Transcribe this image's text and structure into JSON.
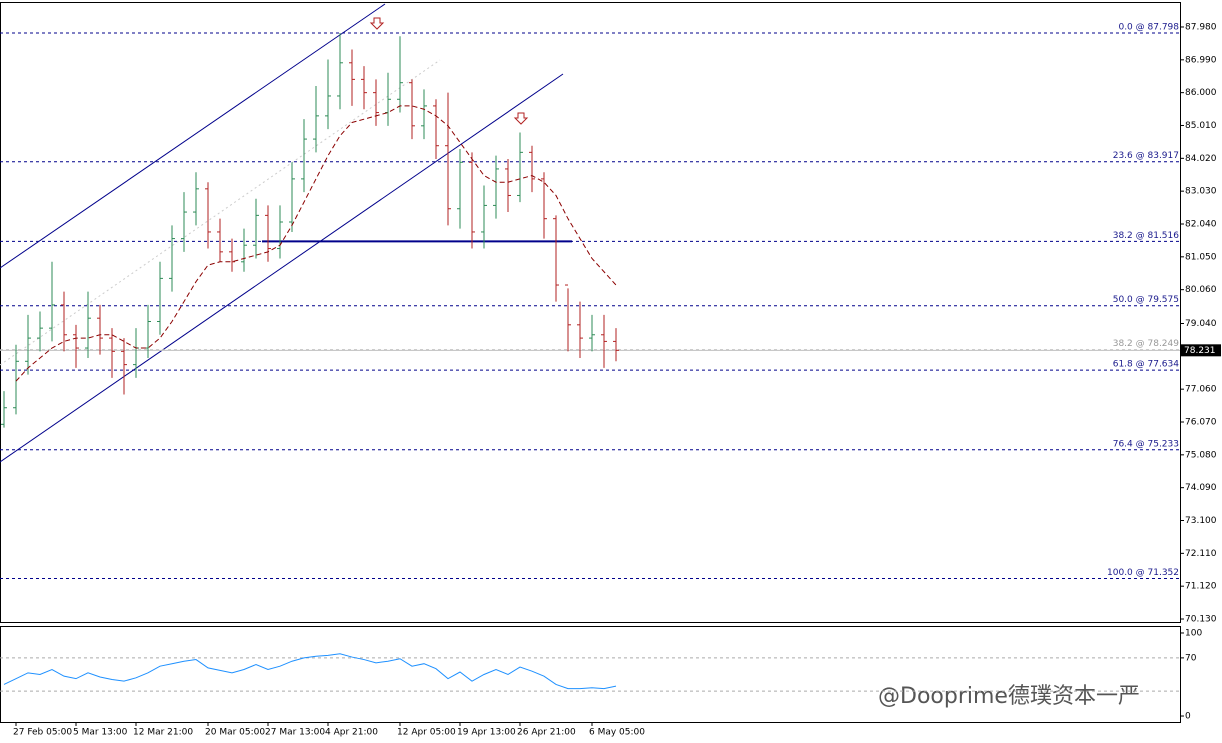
{
  "chart_data": {
    "type": "ohlc",
    "open": [
      76.0,
      76.5,
      77.9,
      78.6,
      78.9,
      79.6,
      78.7,
      78.3,
      79.2,
      78.6,
      78.2,
      77.8,
      78.3,
      79.1,
      80.4,
      81.6,
      82.4,
      83.1,
      81.8,
      81.2,
      80.9,
      81.4,
      82.3,
      81.3,
      82.1,
      83.4,
      84.6,
      85.3,
      85.9,
      86.9,
      86.4,
      86.0,
      85.4,
      85.8,
      86.3,
      85.0,
      85.6,
      84.4,
      82.5,
      83.9,
      81.8,
      82.6,
      83.7,
      82.9,
      84.2,
      83.4,
      82.2,
      80.2,
      79.0,
      78.6,
      78.7,
      78.5
    ],
    "high": [
      77.0,
      78.4,
      79.3,
      79.4,
      80.9,
      80.0,
      79.0,
      80.0,
      79.6,
      78.9,
      78.6,
      78.9,
      79.6,
      80.9,
      82.0,
      83.0,
      83.6,
      83.3,
      82.2,
      81.6,
      81.9,
      82.8,
      82.6,
      82.6,
      83.9,
      85.2,
      86.2,
      87.0,
      87.8,
      87.3,
      86.8,
      86.4,
      86.6,
      87.7,
      86.4,
      86.1,
      85.8,
      86.0,
      84.3,
      84.2,
      83.2,
      84.1,
      84.0,
      84.8,
      84.4,
      83.6,
      82.3,
      80.1,
      79.7,
      79.3,
      79.3,
      78.9
    ],
    "low": [
      75.9,
      76.3,
      77.5,
      78.2,
      78.5,
      78.2,
      77.7,
      78.0,
      78.1,
      77.4,
      76.9,
      77.4,
      78.0,
      78.7,
      80.0,
      81.2,
      82.0,
      81.3,
      80.9,
      80.6,
      80.6,
      81.0,
      80.9,
      81.0,
      81.8,
      83.0,
      84.2,
      84.9,
      85.5,
      85.6,
      85.5,
      85.0,
      85.0,
      85.4,
      84.6,
      84.6,
      84.0,
      82.0,
      81.9,
      81.3,
      81.3,
      82.2,
      82.4,
      82.7,
      83.0,
      81.6,
      79.7,
      78.2,
      78.0,
      78.2,
      77.7,
      77.9
    ],
    "close": [
      76.5,
      77.9,
      78.6,
      78.9,
      79.6,
      78.7,
      78.3,
      79.2,
      78.6,
      78.2,
      77.8,
      78.3,
      79.1,
      80.4,
      81.6,
      82.4,
      83.1,
      81.8,
      81.2,
      80.9,
      81.4,
      82.3,
      81.3,
      82.1,
      83.4,
      84.6,
      85.3,
      85.9,
      86.9,
      86.4,
      86.0,
      85.4,
      85.8,
      86.3,
      85.0,
      85.6,
      84.4,
      82.5,
      83.9,
      81.8,
      82.6,
      83.7,
      82.9,
      84.2,
      83.4,
      82.2,
      80.2,
      79.0,
      78.6,
      78.7,
      78.5,
      78.231
    ],
    "ma": [
      null,
      77.3,
      77.7,
      78.0,
      78.3,
      78.5,
      78.6,
      78.6,
      78.7,
      78.7,
      78.5,
      78.3,
      78.3,
      78.6,
      79.1,
      79.7,
      80.3,
      80.8,
      80.9,
      80.9,
      81.0,
      81.1,
      81.2,
      81.4,
      82.0,
      82.7,
      83.4,
      84.1,
      84.7,
      85.1,
      85.2,
      85.3,
      85.4,
      85.6,
      85.6,
      85.5,
      85.3,
      85.0,
      84.5,
      84.0,
      83.5,
      83.3,
      83.3,
      83.4,
      83.5,
      83.3,
      82.9,
      82.2,
      81.6,
      81.0,
      80.6,
      80.2
    ],
    "categories": [
      null,
      "27 Feb 05:00",
      null,
      null,
      null,
      null,
      "5 Mar 13:00",
      null,
      null,
      null,
      null,
      "12 Mar 21:00",
      null,
      null,
      null,
      null,
      null,
      "20 Mar 05:00",
      null,
      null,
      null,
      null,
      "27 Mar 13:00",
      null,
      null,
      null,
      null,
      "4 Apr 21:00",
      null,
      null,
      null,
      null,
      null,
      "12 Apr 05:00",
      null,
      null,
      null,
      null,
      "19 Apr 13:00",
      null,
      null,
      null,
      null,
      "26 Apr 21:00",
      null,
      null,
      null,
      null,
      null,
      "6 May 05:00",
      null,
      null
    ],
    "up_color": "#2e8b57",
    "down_color": "#b22222",
    "ma_color": "#8b0000",
    "ylim": [
      70.04,
      88.733
    ],
    "yticks": [
      {
        "value": 87.98,
        "label": "87.980"
      },
      {
        "value": 86.99,
        "label": "86.990"
      },
      {
        "value": 86.0,
        "label": "86.000"
      },
      {
        "value": 85.01,
        "label": "85.010"
      },
      {
        "value": 84.02,
        "label": "84.020"
      },
      {
        "value": 83.03,
        "label": "83.030"
      },
      {
        "value": 82.04,
        "label": "82.040"
      },
      {
        "value": 81.05,
        "label": "81.050"
      },
      {
        "value": 80.06,
        "label": "80.060"
      },
      {
        "value": 79.04,
        "label": "79.040"
      },
      {
        "value": 77.06,
        "label": "77.060"
      },
      {
        "value": 76.07,
        "label": "76.070"
      },
      {
        "value": 75.08,
        "label": "75.080"
      },
      {
        "value": 74.09,
        "label": "74.090"
      },
      {
        "value": 73.1,
        "label": "73.100"
      },
      {
        "value": 72.11,
        "label": "72.110"
      },
      {
        "value": 71.12,
        "label": "71.120"
      },
      {
        "value": 70.13,
        "label": "70.130"
      }
    ],
    "fib": [
      {
        "value": 87.798,
        "label": "0.0 @ 87.798"
      },
      {
        "value": 83.917,
        "label": "23.6 @ 83.917"
      },
      {
        "value": 81.516,
        "label": "38.2 @ 81.516"
      },
      {
        "value": 79.575,
        "label": "50.0 @ 79.575"
      },
      {
        "value": 77.634,
        "label": "61.8 @ 77.634"
      },
      {
        "value": 75.233,
        "label": "76.4 @ 75.233"
      },
      {
        "value": 71.352,
        "label": "100.0 @ 71.352"
      }
    ],
    "fib2": [
      {
        "value": 78.249,
        "label": "38.2 @ 78.249"
      }
    ],
    "last_price": 78.231,
    "rsi": [
      38,
      45,
      52,
      50,
      56,
      48,
      45,
      52,
      47,
      44,
      42,
      46,
      52,
      60,
      63,
      66,
      68,
      58,
      55,
      52,
      56,
      62,
      56,
      60,
      66,
      70,
      72,
      73,
      75,
      71,
      68,
      64,
      66,
      69,
      60,
      63,
      57,
      45,
      53,
      42,
      50,
      56,
      50,
      59,
      54,
      48,
      38,
      33,
      33,
      34,
      33,
      36
    ],
    "rsi_color": "#1e90ff",
    "rsi_ylim": [
      -7.2,
      107.2
    ],
    "rsi_yticks": [
      100,
      70,
      0
    ],
    "rsi_levels": [
      70,
      30
    ],
    "watermark": "@Dooprime德璞资本一严"
  }
}
